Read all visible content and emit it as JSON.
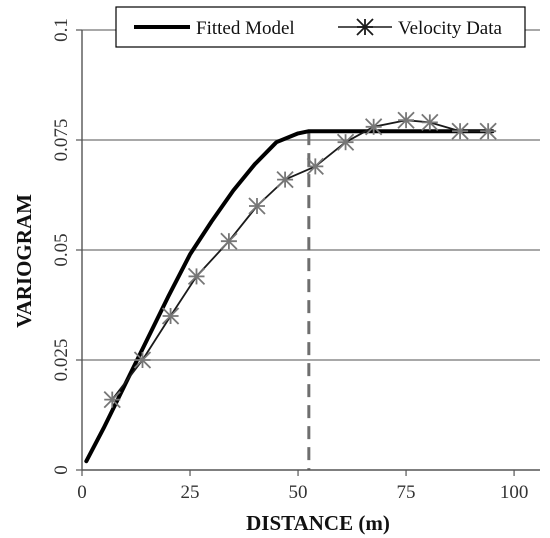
{
  "chart_data": {
    "type": "line",
    "title": "",
    "xlabel": "DISTANCE (m)",
    "ylabel": "VARIOGRAM",
    "xlim": [
      0,
      100
    ],
    "ylim": [
      0,
      0.1
    ],
    "x_ticks": [
      "0",
      "25",
      "50",
      "75",
      "100"
    ],
    "y_ticks": [
      "0",
      "0.025",
      "0.05",
      "0.075",
      "0.1"
    ],
    "grid": "horizontal",
    "legend_placement": "top",
    "range_marker_x": 52.5,
    "series": [
      {
        "name": "Fitted Model",
        "color": "#000000",
        "marker": "none",
        "x": [
          1,
          5,
          10,
          15,
          20,
          25,
          30,
          35,
          40,
          45,
          50,
          52.5,
          55,
          60,
          70,
          80,
          90,
          95
        ],
        "y": [
          0.002,
          0.0095,
          0.0195,
          0.0295,
          0.0395,
          0.049,
          0.0565,
          0.0635,
          0.0695,
          0.0745,
          0.0765,
          0.077,
          0.077,
          0.077,
          0.077,
          0.077,
          0.077,
          0.077
        ]
      },
      {
        "name": "Velocity Data",
        "color": "#1a1a1a",
        "marker": "asterisk",
        "x": [
          7,
          14,
          20.5,
          26.5,
          34,
          40.5,
          47,
          54,
          61,
          67.5,
          75,
          80.5,
          87.5,
          94
        ],
        "y": [
          0.016,
          0.025,
          0.035,
          0.044,
          0.052,
          0.06,
          0.066,
          0.069,
          0.0745,
          0.078,
          0.0795,
          0.079,
          0.077,
          0.077
        ]
      }
    ]
  }
}
